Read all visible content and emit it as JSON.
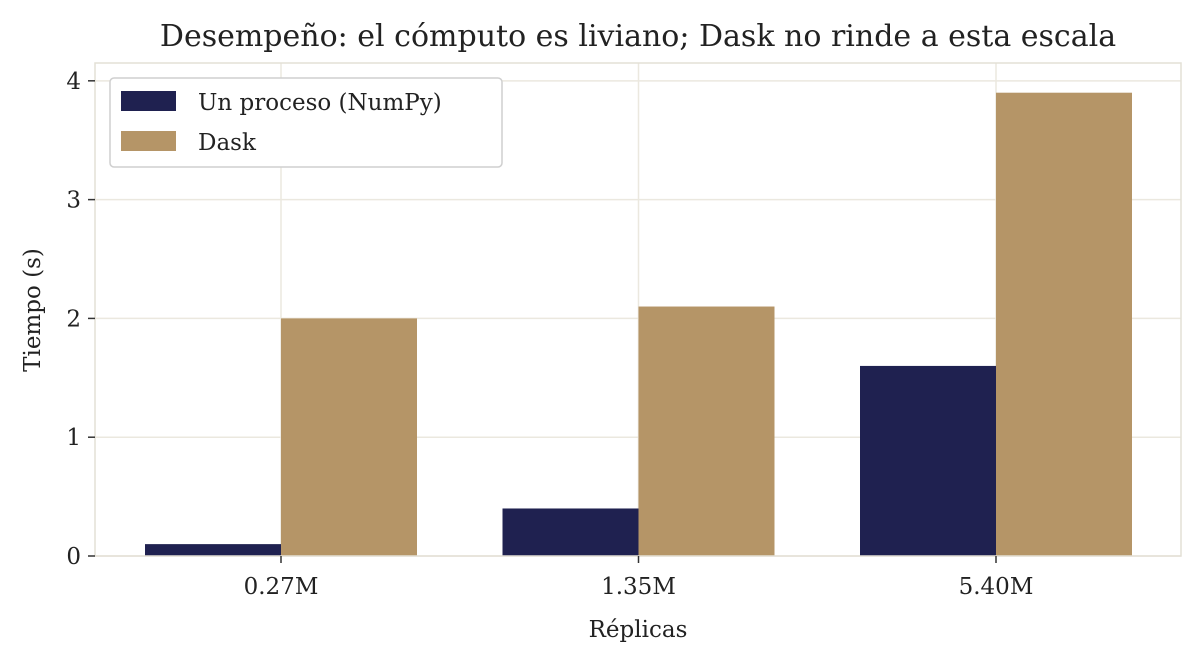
{
  "chart_data": {
    "type": "bar",
    "title": "Desempeño: el cómputo es liviano; Dask no rinde a esta escala",
    "xlabel": "Réplicas",
    "ylabel": "Tiempo (s)",
    "categories": [
      "0.27M",
      "1.35M",
      "5.40M"
    ],
    "series": [
      {
        "name": "Un proceso (NumPy)",
        "values": [
          0.1,
          0.4,
          1.6
        ],
        "color": "#1f2150"
      },
      {
        "name": "Dask",
        "values": [
          2.0,
          2.1,
          3.9
        ],
        "color": "#b59567"
      }
    ],
    "ylim": [
      0,
      4.15
    ],
    "yticks": [
      "0",
      "1",
      "2",
      "3",
      "4"
    ],
    "grid": true,
    "legend_position": "top-left"
  }
}
